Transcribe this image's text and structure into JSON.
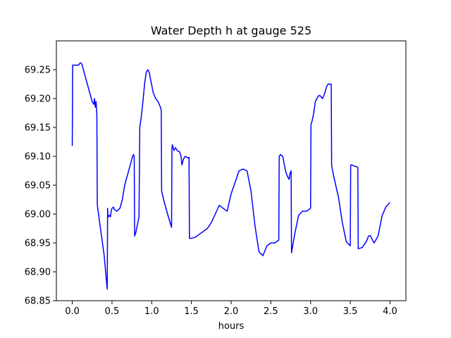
{
  "chart_data": {
    "type": "line",
    "title": "Water Depth h at gauge 525",
    "xlabel": "hours",
    "ylabel": "",
    "xlim": [
      -0.2,
      4.2
    ],
    "ylim": [
      68.85,
      69.3
    ],
    "xticks": [
      0.0,
      0.5,
      1.0,
      1.5,
      2.0,
      2.5,
      3.0,
      3.5,
      4.0
    ],
    "xtick_labels": [
      "0.0",
      "0.5",
      "1.0",
      "1.5",
      "2.0",
      "2.5",
      "3.0",
      "3.5",
      "4.0"
    ],
    "yticks": [
      68.85,
      68.9,
      68.95,
      69.0,
      69.05,
      69.1,
      69.15,
      69.2,
      69.25
    ],
    "ytick_labels": [
      "68.85",
      "68.90",
      "68.95",
      "69.00",
      "69.05",
      "69.10",
      "69.15",
      "69.20",
      "69.25"
    ],
    "grid": false,
    "legend": "none",
    "series": [
      {
        "color": "#0000ff",
        "x": [
          0.0,
          0.005,
          0.02,
          0.05,
          0.08,
          0.1,
          0.12,
          0.15,
          0.18,
          0.22,
          0.25,
          0.27,
          0.28,
          0.29,
          0.3,
          0.31,
          0.315,
          0.35,
          0.4,
          0.44,
          0.445,
          0.45,
          0.47,
          0.48,
          0.49,
          0.5,
          0.52,
          0.53,
          0.56,
          0.6,
          0.63,
          0.66,
          0.7,
          0.73,
          0.76,
          0.77,
          0.78,
          0.785,
          0.8,
          0.84,
          0.85,
          0.86,
          0.87,
          0.89,
          0.9,
          0.91,
          0.93,
          0.95,
          0.97,
          0.99,
          1.02,
          1.05,
          1.08,
          1.11,
          1.12,
          1.125,
          1.15,
          1.2,
          1.25,
          1.255,
          1.26,
          1.27,
          1.28,
          1.3,
          1.32,
          1.35,
          1.37,
          1.38,
          1.4,
          1.42,
          1.45,
          1.46,
          1.47,
          1.475,
          1.5,
          1.55,
          1.6,
          1.65,
          1.7,
          1.75,
          1.8,
          1.85,
          1.9,
          1.95,
          2.0,
          2.05,
          2.1,
          2.15,
          2.2,
          2.25,
          2.3,
          2.35,
          2.4,
          2.45,
          2.5,
          2.55,
          2.6,
          2.605,
          2.62,
          2.65,
          2.67,
          2.69,
          2.71,
          2.73,
          2.74,
          2.75,
          2.755,
          2.76,
          2.8,
          2.85,
          2.9,
          2.95,
          3.0,
          3.005,
          3.02,
          3.04,
          3.06,
          3.08,
          3.1,
          3.12,
          3.15,
          3.18,
          3.2,
          3.22,
          3.24,
          3.26,
          3.265,
          3.27,
          3.3,
          3.35,
          3.4,
          3.45,
          3.5,
          3.505,
          3.52,
          3.55,
          3.58,
          3.59,
          3.595,
          3.6,
          3.65,
          3.7,
          3.73,
          3.75,
          3.78,
          3.8,
          3.85,
          3.9,
          3.95,
          4.0
        ],
        "y": [
          69.118,
          69.258,
          69.258,
          69.258,
          69.258,
          69.262,
          69.26,
          69.245,
          69.23,
          69.21,
          69.195,
          69.19,
          69.2,
          69.185,
          69.195,
          69.17,
          69.016,
          68.98,
          68.93,
          68.87,
          69.01,
          68.995,
          68.998,
          68.995,
          69.005,
          69.01,
          69.012,
          69.008,
          69.005,
          69.01,
          69.025,
          69.05,
          69.07,
          69.085,
          69.1,
          69.103,
          69.1,
          68.962,
          68.968,
          68.995,
          69.15,
          69.16,
          69.17,
          69.195,
          69.21,
          69.225,
          69.245,
          69.25,
          69.245,
          69.23,
          69.21,
          69.2,
          69.195,
          69.185,
          69.18,
          69.04,
          69.025,
          69.0,
          68.977,
          69.115,
          69.12,
          69.115,
          69.11,
          69.115,
          69.11,
          69.108,
          69.1,
          69.085,
          69.095,
          69.1,
          69.098,
          69.097,
          69.098,
          68.958,
          68.958,
          68.96,
          68.965,
          68.97,
          68.975,
          68.985,
          69.0,
          69.015,
          69.01,
          69.005,
          69.035,
          69.055,
          69.075,
          69.078,
          69.075,
          69.04,
          68.98,
          68.935,
          68.928,
          68.945,
          68.95,
          68.95,
          68.955,
          69.1,
          69.103,
          69.1,
          69.085,
          69.072,
          69.065,
          69.06,
          69.07,
          69.073,
          69.075,
          68.933,
          68.965,
          68.998,
          69.005,
          69.005,
          69.01,
          69.155,
          69.162,
          69.175,
          69.195,
          69.2,
          69.205,
          69.205,
          69.2,
          69.21,
          69.22,
          69.225,
          69.225,
          69.225,
          69.085,
          69.08,
          69.06,
          69.03,
          68.985,
          68.952,
          68.945,
          69.085,
          69.085,
          69.083,
          69.082,
          69.081,
          69.08,
          68.94,
          68.942,
          68.952,
          68.962,
          68.963,
          68.955,
          68.95,
          68.962,
          68.997,
          69.013,
          69.02
        ]
      }
    ]
  }
}
